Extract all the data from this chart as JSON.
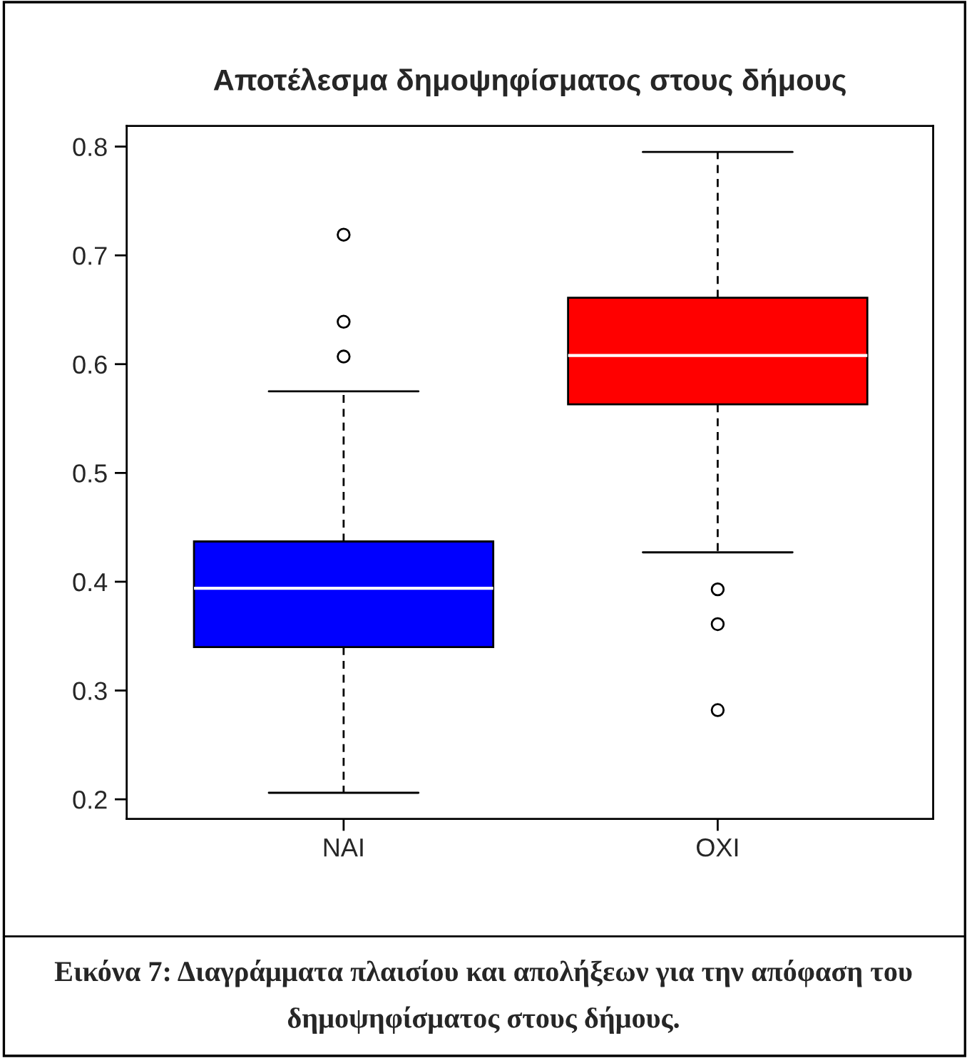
{
  "chart_data": {
    "type": "box",
    "title": "Αποτέλεσμα δημοψηφίσματος στους δήμους",
    "categories": [
      "NAI",
      "OXI"
    ],
    "colors": [
      "#0000ff",
      "#ff0000"
    ],
    "boxes": [
      {
        "low": 0.206,
        "q1": 0.34,
        "median": 0.394,
        "q3": 0.437,
        "high": 0.575,
        "outliers": [
          0.607,
          0.639,
          0.719
        ]
      },
      {
        "low": 0.427,
        "q1": 0.563,
        "median": 0.608,
        "q3": 0.661,
        "high": 0.795,
        "outliers": [
          0.393,
          0.361,
          0.282
        ]
      }
    ],
    "ylim": [
      0.182,
      0.819
    ],
    "yticks": [
      0.2,
      0.3,
      0.4,
      0.5,
      0.6,
      0.7,
      0.8
    ],
    "grid": false,
    "legend": false,
    "annotations": [
      "Εικόνα 7: Διαγράμματα πλαισίου και απολήξεων για την απόφαση του δημοψηφίσματος στους δήμους."
    ]
  }
}
